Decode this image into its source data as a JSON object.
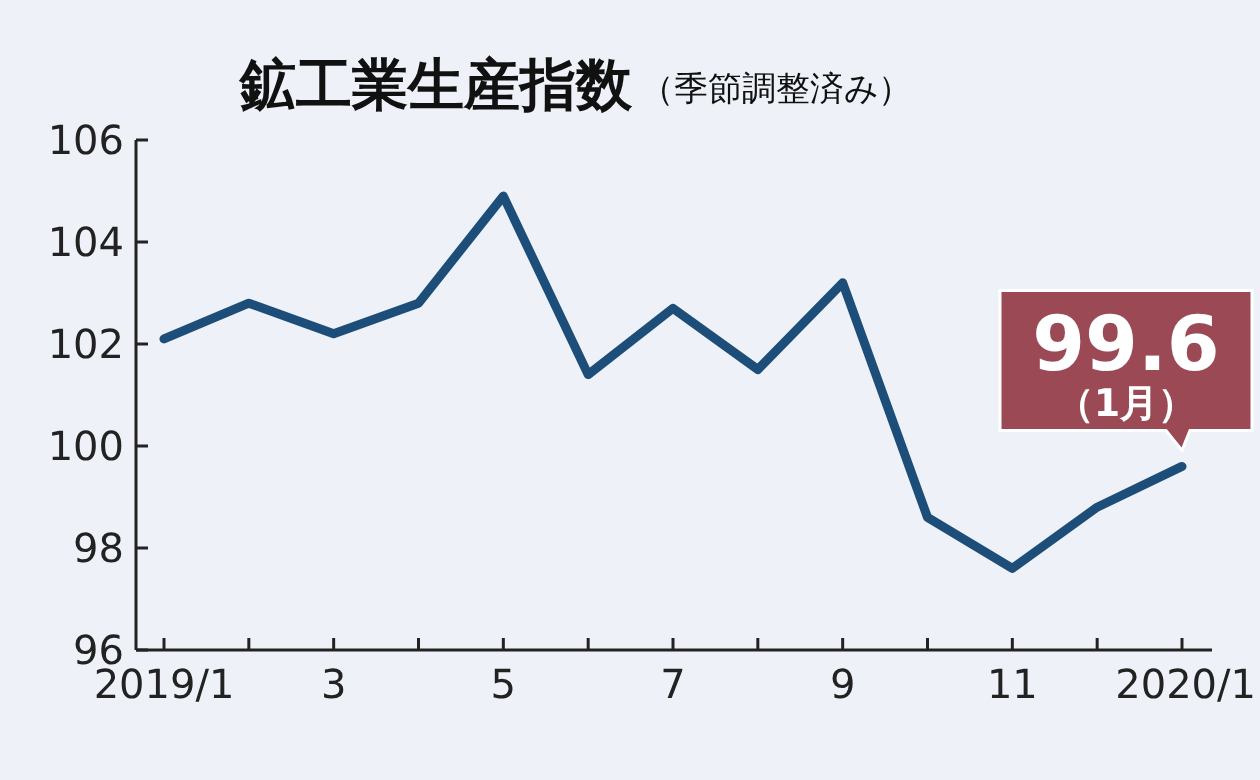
{
  "chart_data": {
    "type": "line",
    "title": "鉱工業生産指数",
    "subtitle": "（季節調整済み）",
    "categories": [
      "2019/1",
      null,
      "3",
      null,
      "5",
      null,
      "7",
      null,
      "9",
      null,
      "11",
      null,
      "2020/1"
    ],
    "values": [
      102.1,
      102.8,
      102.2,
      102.8,
      104.9,
      101.4,
      102.7,
      101.5,
      103.2,
      98.6,
      97.6,
      98.8,
      99.6
    ],
    "color": "#1d4e7a",
    "ylim": [
      96,
      106
    ],
    "yticks": [
      96,
      98,
      100,
      102,
      104,
      106
    ],
    "annotations": [
      {
        "text": "99.6\n（1月）",
        "x": "2020/1",
        "y": 99.6
      }
    ],
    "marker": "none",
    "line_style": "solid"
  }
}
